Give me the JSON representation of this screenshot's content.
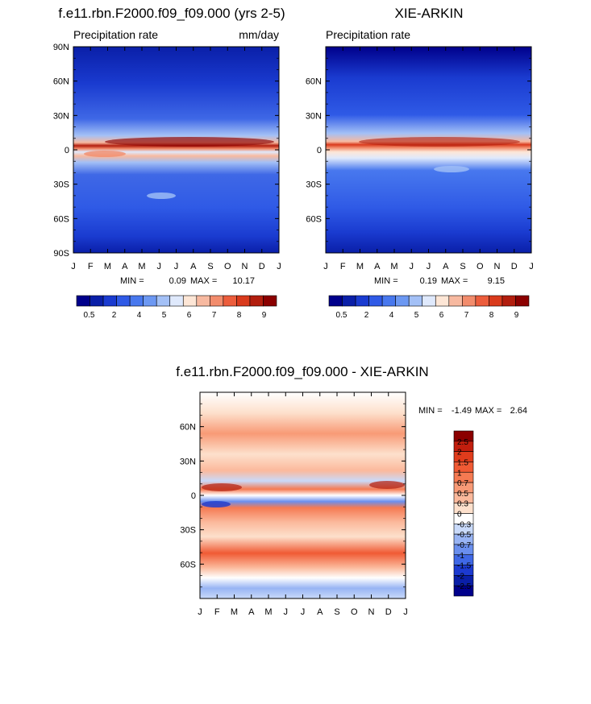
{
  "chart_data": [
    {
      "type": "heatmap",
      "title": "f.e11.rbn.F2000.f09_f09.000 (yrs 2-5)",
      "subtitle_left": "Precipitation rate",
      "subtitle_right": "mm/day",
      "x_ticks": [
        "J",
        "F",
        "M",
        "A",
        "M",
        "J",
        "J",
        "A",
        "S",
        "O",
        "N",
        "D",
        "J"
      ],
      "y_ticks": [
        "90N",
        "60N",
        "30N",
        "0",
        "30S",
        "60S",
        "90S"
      ],
      "ylim": [
        -90,
        90
      ],
      "stats": {
        "min_label": "MIN =",
        "min": "0.09",
        "max_label": "MAX =",
        "max": "10.17"
      },
      "colorbar_labels": [
        "0.5",
        "2",
        "4",
        "5",
        "6",
        "7",
        "8",
        "9"
      ],
      "colorbar_colors": [
        "#00008b",
        "#0a1fa8",
        "#1a3bd0",
        "#2f5ae6",
        "#4878ee",
        "#6c98f2",
        "#a3c0f6",
        "#dfe9fc",
        "#fde6d6",
        "#f7b9a0",
        "#f28c6c",
        "#ec5d3c",
        "#d93a1c",
        "#b21e0e",
        "#8b0000"
      ],
      "grid": false
    },
    {
      "type": "heatmap",
      "title": "XIE-ARKIN",
      "subtitle_left": "Precipitation rate",
      "x_ticks": [
        "J",
        "F",
        "M",
        "A",
        "M",
        "J",
        "J",
        "A",
        "S",
        "O",
        "N",
        "D",
        "J"
      ],
      "y_ticks": [
        "60N",
        "30N",
        "0",
        "30S",
        "60S"
      ],
      "ylim": [
        -90,
        90
      ],
      "stats": {
        "min_label": "MIN =",
        "min": "0.19",
        "max_label": "MAX =",
        "max": "9.15"
      },
      "colorbar_labels": [
        "0.5",
        "2",
        "4",
        "5",
        "6",
        "7",
        "8",
        "9"
      ],
      "colorbar_colors": [
        "#00008b",
        "#0a1fa8",
        "#1a3bd0",
        "#2f5ae6",
        "#4878ee",
        "#6c98f2",
        "#a3c0f6",
        "#dfe9fc",
        "#fde6d6",
        "#f7b9a0",
        "#f28c6c",
        "#ec5d3c",
        "#d93a1c",
        "#b21e0e",
        "#8b0000"
      ],
      "grid": false
    },
    {
      "type": "heatmap",
      "title": "f.e11.rbn.F2000.f09_f09.000 - XIE-ARKIN",
      "x_ticks": [
        "J",
        "F",
        "M",
        "A",
        "M",
        "J",
        "J",
        "A",
        "S",
        "O",
        "N",
        "D",
        "J"
      ],
      "y_ticks": [
        "60N",
        "30N",
        "0",
        "30S",
        "60S"
      ],
      "ylim": [
        -90,
        90
      ],
      "stats": {
        "min_label": "MIN =",
        "min": "-1.49",
        "max_label": "MAX =",
        "max": "2.64"
      },
      "colorbar_labels": [
        "2.5",
        "2",
        "1.5",
        "1",
        "0.7",
        "0.5",
        "0.3",
        "0",
        "-0.3",
        "-0.5",
        "-0.7",
        "-1",
        "-1.5",
        "-2",
        "-2.5"
      ],
      "colorbar_colors": [
        "#8b0000",
        "#c21e0e",
        "#e03c1c",
        "#f05a34",
        "#f57a52",
        "#f89a76",
        "#fbb99c",
        "#fde0cc",
        "#ffffff",
        "#c9dafa",
        "#98b4f4",
        "#6a8fee",
        "#3f68e6",
        "#1c3ad0",
        "#0a1fa8",
        "#00008b"
      ],
      "grid": false
    }
  ]
}
